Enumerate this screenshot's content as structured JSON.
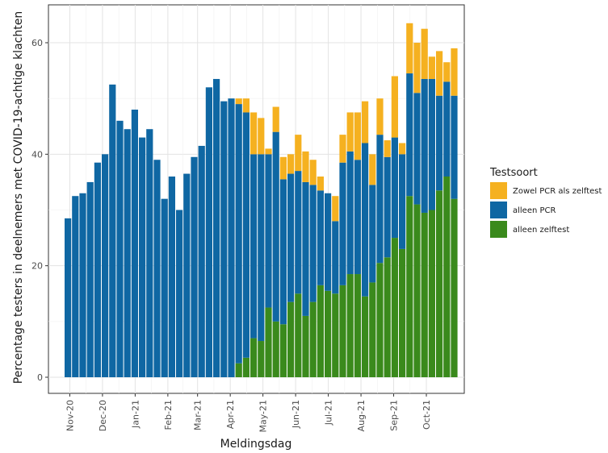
{
  "chart_data": {
    "type": "bar",
    "stacked": true,
    "xlabel": "Meldingsdag",
    "ylabel": "Percentage testers in deelnemers met COVID-19-achtige klachten",
    "ylim": [
      0,
      67
    ],
    "yticks": [
      0,
      20,
      40,
      60
    ],
    "x_tick_labels": [
      "Nov-20",
      "Dec-20",
      "Jan-21",
      "Feb-21",
      "Mar-21",
      "Apr-21",
      "May-21",
      "Jun-21",
      "Jul-21",
      "Aug-21",
      "Sep-21",
      "Oct-21"
    ],
    "x_tick_week_index": [
      0.7,
      5.1,
      9.5,
      13.9,
      17.9,
      22.3,
      26.7,
      31.1,
      35.5,
      39.9,
      44.3,
      48.7
    ],
    "grid": true,
    "legend": {
      "title": "Testsoort",
      "position": "right",
      "entries": [
        {
          "name": "Zowel PCR als zelftest",
          "color": "#f5b120"
        },
        {
          "name": "alleen PCR",
          "color": "#0f67a3"
        },
        {
          "name": "alleen zelftest",
          "color": "#3a8a1c"
        }
      ]
    },
    "series": [
      {
        "name": "alleen zelftest",
        "color": "#3a8a1c",
        "values": [
          0,
          0,
          0,
          0,
          0,
          0,
          0,
          0,
          0,
          0,
          0,
          0,
          0,
          0,
          0,
          0,
          0,
          0,
          0,
          0,
          0,
          0,
          0,
          2.5,
          3.5,
          7,
          6.5,
          12.5,
          10,
          9.5,
          13.5,
          15,
          11,
          13.5,
          16.5,
          15.5,
          15,
          16.5,
          18.5,
          18.5,
          14.5,
          17,
          20.5,
          21.5,
          25,
          23,
          32.5,
          31,
          29.5,
          30,
          33.5,
          36,
          32
        ]
      },
      {
        "name": "alleen PCR",
        "color": "#0f67a3",
        "values": [
          28.5,
          32.5,
          33,
          35,
          38.5,
          40,
          52.5,
          46,
          44.5,
          48,
          43,
          44.5,
          39,
          32,
          36,
          30,
          36.5,
          39.5,
          41.5,
          52,
          53.5,
          49.5,
          50,
          46.5,
          44,
          33,
          33.5,
          27.5,
          34,
          26,
          23,
          22,
          24,
          21,
          17,
          17.5,
          13,
          22,
          22,
          20.5,
          27.5,
          17.5,
          23,
          18,
          18,
          17,
          22,
          20,
          24,
          23.5,
          17,
          17,
          18.5
        ]
      },
      {
        "name": "Zowel PCR als zelftest",
        "color": "#f5b120",
        "values": [
          0,
          0,
          0,
          0,
          0,
          0,
          0,
          0,
          0,
          0,
          0,
          0,
          0,
          0,
          0,
          0,
          0,
          0,
          0,
          0,
          0,
          0,
          0,
          1,
          2.5,
          7.5,
          6.5,
          1,
          4.5,
          4,
          3.5,
          6.5,
          5.5,
          4.5,
          2.5,
          0,
          4.5,
          5,
          7,
          8.5,
          7.5,
          5.5,
          6.5,
          3,
          11,
          2,
          9,
          9,
          9,
          4,
          8,
          3.5,
          8.5
        ]
      }
    ]
  }
}
